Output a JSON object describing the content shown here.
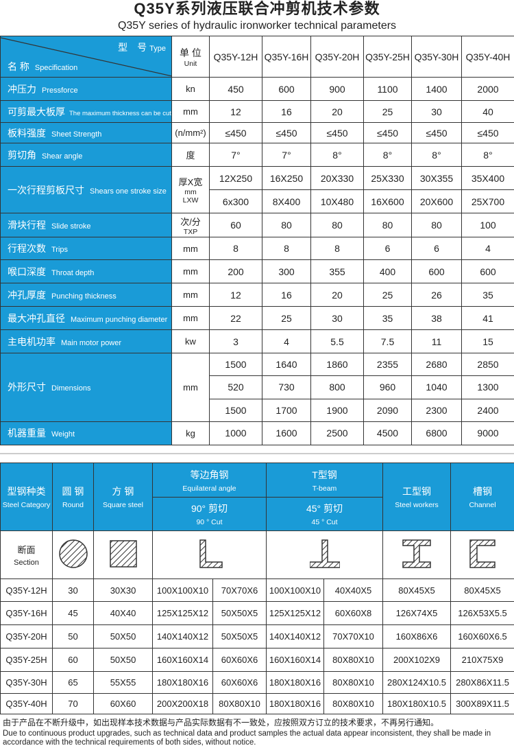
{
  "title_cn": "Q35Y系列液压联合冲剪机技术参数",
  "title_en": "Q35Y series of hydraulic ironworker technical parameters",
  "colors": {
    "header_blue": "#1a9bd7",
    "border": "#333333"
  },
  "spec_table": {
    "corner": {
      "type_cn": "型　号",
      "type_en": "Type",
      "name_cn": "名 称",
      "name_en": "Specification"
    },
    "unit_header": {
      "cn": "单 位",
      "en": "Unit"
    },
    "models": [
      "Q35Y-12H",
      "Q35Y-16H",
      "Q35Y-20H",
      "Q35Y-25H",
      "Q35Y-30H",
      "Q35Y-40H"
    ],
    "rows": [
      {
        "cn": "冲压力",
        "en": "Pressforce",
        "unit": "kn",
        "values": [
          [
            "450",
            "600",
            "900",
            "1100",
            "1400",
            "2000"
          ]
        ]
      },
      {
        "cn": "可剪最大板厚",
        "en": "The maximum thickness can be cut",
        "unit": "mm",
        "values": [
          [
            "12",
            "16",
            "20",
            "25",
            "30",
            "40"
          ]
        ]
      },
      {
        "cn": "板料强度",
        "en": "Sheet Strength",
        "unit": "(n/mm²)",
        "values": [
          [
            "≤450",
            "≤450",
            "≤450",
            "≤450",
            "≤450",
            "≤450"
          ]
        ]
      },
      {
        "cn": "剪切角",
        "en": "Shear angle",
        "unit": "度",
        "values": [
          [
            "7°",
            "7°",
            "8°",
            "8°",
            "8°",
            "8°"
          ]
        ]
      },
      {
        "cn": "一次行程剪板尺寸",
        "en": "Shears one stroke size",
        "unit": "厚X宽",
        "unit_sub": "mm",
        "unit_sub2": "LXW",
        "values": [
          [
            "12X250",
            "16X250",
            "20X330",
            "25X330",
            "30X355",
            "35X400"
          ],
          [
            "6x300",
            "8X400",
            "10X480",
            "16X600",
            "20X600",
            "25X700"
          ]
        ]
      },
      {
        "cn": "滑块行程",
        "en": "Slide stroke",
        "unit": "次/分",
        "unit_sub": "TXP",
        "values": [
          [
            "60",
            "80",
            "80",
            "80",
            "80",
            "100"
          ]
        ]
      },
      {
        "cn": "行程次数",
        "en": "Trips",
        "unit": "mm",
        "values": [
          [
            "8",
            "8",
            "8",
            "6",
            "6",
            "4"
          ]
        ]
      },
      {
        "cn": "喉口深度",
        "en": "Throat depth",
        "unit": "mm",
        "values": [
          [
            "200",
            "300",
            "355",
            "400",
            "600",
            "600"
          ]
        ]
      },
      {
        "cn": "冲孔厚度",
        "en": "Punching thickness",
        "unit": "mm",
        "values": [
          [
            "12",
            "16",
            "20",
            "25",
            "26",
            "35"
          ]
        ]
      },
      {
        "cn": "最大冲孔直径",
        "en": "Maximum punching diameter",
        "unit": "mm",
        "values": [
          [
            "22",
            "25",
            "30",
            "35",
            "38",
            "41"
          ]
        ]
      },
      {
        "cn": "主电机功率",
        "en": "Main motor power",
        "unit": "kw",
        "values": [
          [
            "3",
            "4",
            "5.5",
            "7.5",
            "11",
            "15"
          ]
        ]
      },
      {
        "cn": "外形尺寸",
        "en": "Dimensions",
        "unit": "mm",
        "values": [
          [
            "1500",
            "1640",
            "1860",
            "2355",
            "2680",
            "2850"
          ],
          [
            "520",
            "730",
            "800",
            "960",
            "1040",
            "1300"
          ],
          [
            "1500",
            "1700",
            "1900",
            "2090",
            "2300",
            "2400"
          ]
        ]
      },
      {
        "cn": "机器重量",
        "en": "Weight",
        "unit": "kg",
        "values": [
          [
            "1000",
            "1600",
            "2500",
            "4500",
            "6800",
            "9000"
          ]
        ]
      }
    ]
  },
  "steel_table": {
    "headers": {
      "category": {
        "cn": "型钢种类",
        "en": "Steel Category"
      },
      "round": {
        "cn": "圆 钢",
        "en": "Round"
      },
      "square": {
        "cn": "方 钢",
        "en": "Square steel"
      },
      "angle": {
        "cn": "等边角钢",
        "en": "Equilateral angle"
      },
      "tbeam": {
        "cn": "T型钢",
        "en": "T-beam"
      },
      "cut90": {
        "cn": "90° 剪切",
        "en": "90 ° Cut"
      },
      "cut45": {
        "cn": "45° 剪切",
        "en": "45 ° Cut"
      },
      "ibeam": {
        "cn": "工型钢",
        "en": "Steel workers"
      },
      "channel": {
        "cn": "槽钢",
        "en": "Channel"
      }
    },
    "section": {
      "cn": "断面",
      "en": "Section",
      "icons": [
        "round-section-icon",
        "square-section-icon",
        "angle-section-icon",
        "tbeam-section-icon",
        "ibeam-section-icon",
        "channel-section-icon"
      ]
    },
    "rows": [
      [
        "Q35Y-12H",
        "30",
        "30X30",
        "100X100X10",
        "70X70X6",
        "100X100X10",
        "40X40X5",
        "80X45X5",
        "80X45X5"
      ],
      [
        "Q35Y-16H",
        "45",
        "40X40",
        "125X125X12",
        "50X50X5",
        "125X125X12",
        "60X60X8",
        "126X74X5",
        "126X53X5.5"
      ],
      [
        "Q35Y-20H",
        "50",
        "50X50",
        "140X140X12",
        "50X50X5",
        "140X140X12",
        "70X70X10",
        "160X86X6",
        "160X60X6.5"
      ],
      [
        "Q35Y-25H",
        "60",
        "50X50",
        "160X160X14",
        "60X60X6",
        "160X160X14",
        "80X80X10",
        "200X102X9",
        "210X75X9"
      ],
      [
        "Q35Y-30H",
        "65",
        "55X55",
        "180X180X16",
        "60X60X6",
        "180X180X16",
        "80X80X10",
        "280X124X10.5",
        "280X86X11.5"
      ],
      [
        "Q35Y-40H",
        "70",
        "60X60",
        "200X200X18",
        "80X80X10",
        "180X180X16",
        "80X80X10",
        "180X180X10.5",
        "300X89X11.5"
      ]
    ]
  },
  "footer": {
    "cn": "由于产品在不断升级中，如出现样本技术数据与产品实际数据有不一致处，应按照双方订立的技术要求，不再另行通知。",
    "en": "Due to continuous product upgrades, such as technical data and product samples the actual data appear inconsistent, they shall be made in accordance with the technical requirements of both sides, without notice."
  }
}
